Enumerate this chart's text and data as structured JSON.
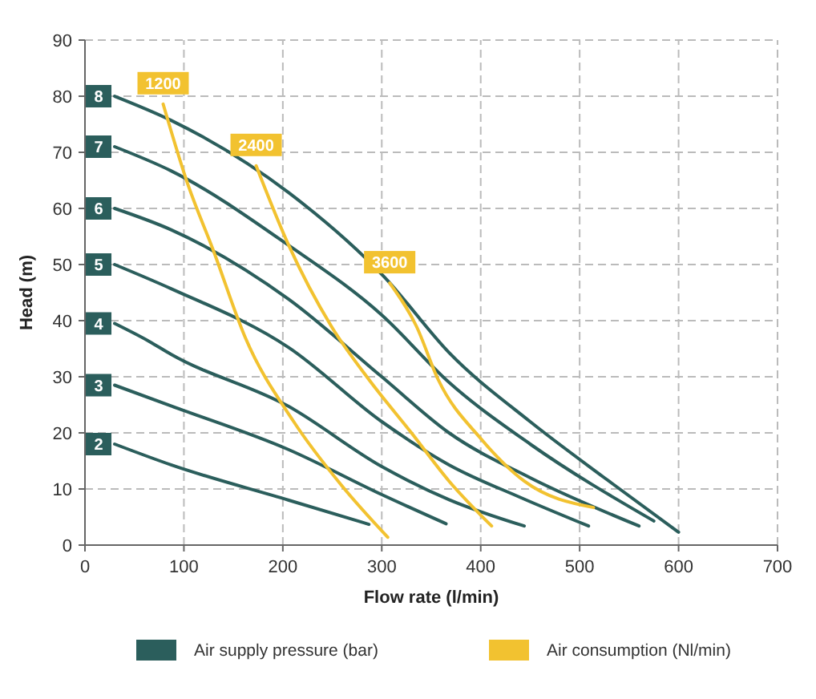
{
  "chart_data": {
    "type": "line",
    "xlabel": "Flow rate (l/min)",
    "ylabel": "Head (m)",
    "xlim": [
      0,
      700
    ],
    "xticks": [
      0,
      100,
      200,
      300,
      400,
      500,
      600,
      700
    ],
    "ylim": [
      0,
      90
    ],
    "yticks": [
      0,
      10,
      20,
      30,
      40,
      50,
      60,
      70,
      80,
      90
    ],
    "grid": true,
    "line_style": "solid",
    "marker": "none",
    "annotations": [
      "Air supply pressure (bar)",
      "Air consumption (Nl/min)"
    ],
    "series": [
      {
        "name": "8",
        "color": "#2b5e5c",
        "x": [
          30,
          87,
          206,
          303,
          368,
          450,
          525,
          600
        ],
        "values": [
          80,
          75.7,
          62.8,
          47.7,
          34.3,
          22,
          12,
          2.3
        ]
      },
      {
        "name": "7",
        "color": "#2b5e5c",
        "x": [
          30,
          87,
          206,
          300,
          368,
          450,
          575
        ],
        "values": [
          71,
          66.7,
          53.4,
          41,
          29,
          18,
          4.3
        ]
      },
      {
        "name": "6",
        "color": "#2b5e5c",
        "x": [
          30,
          87,
          206,
          300,
          368,
          450,
          560
        ],
        "values": [
          60,
          56.2,
          43.8,
          30,
          20,
          12,
          3.4
        ]
      },
      {
        "name": "5",
        "color": "#2b5e5c",
        "x": [
          30,
          87,
          206,
          300,
          368,
          440,
          509
        ],
        "values": [
          50,
          45.7,
          35.2,
          22,
          14.3,
          8.5,
          3.4
        ]
      },
      {
        "name": "4",
        "color": "#2b5e5c",
        "x": [
          30,
          65,
          87,
          206,
          300,
          368,
          444
        ],
        "values": [
          39.5,
          36.3,
          34,
          24.7,
          14,
          8.1,
          3.4
        ]
      },
      {
        "name": "3",
        "color": "#2b5e5c",
        "x": [
          30,
          87,
          206,
          300,
          365
        ],
        "values": [
          28.5,
          24.8,
          17,
          9,
          3.8
        ]
      },
      {
        "name": "2",
        "color": "#2b5e5c",
        "x": [
          30,
          87,
          206,
          287
        ],
        "values": [
          18,
          14.3,
          8,
          3.7
        ]
      },
      {
        "name": "1200",
        "color": "#f2c230",
        "x": [
          79,
          103,
          130,
          162,
          211,
          260,
          306
        ],
        "values": [
          78.6,
          64.8,
          52.4,
          37,
          22,
          10.5,
          1.4
        ]
      },
      {
        "name": "2400",
        "color": "#f2c230",
        "x": [
          173,
          206,
          249,
          287,
          330,
          368,
          411
        ],
        "values": [
          67.6,
          53.4,
          39,
          29.5,
          20,
          11.4,
          3.4
        ]
      },
      {
        "name": "3600",
        "color": "#f2c230",
        "x": [
          308,
          335,
          357,
          400,
          444,
          514
        ],
        "values": [
          46.7,
          39,
          29.5,
          19,
          11.4,
          6.7
        ]
      }
    ]
  }
}
